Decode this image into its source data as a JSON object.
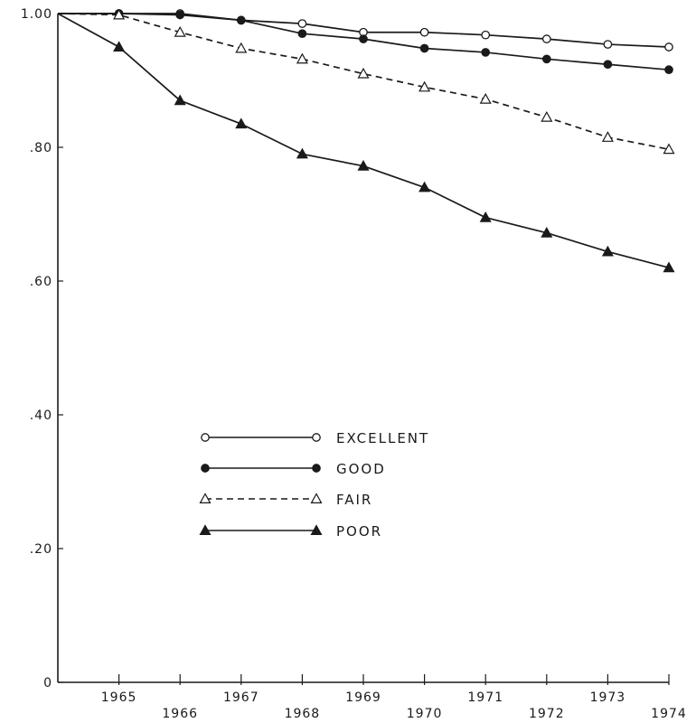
{
  "chart_data": {
    "type": "line",
    "title": "",
    "xlabel": "",
    "ylabel": "",
    "xlim": [
      1964,
      1974
    ],
    "ylim": [
      0,
      1.0
    ],
    "grid": false,
    "legend_position": "center-left",
    "x": [
      1964,
      1965,
      1966,
      1967,
      1968,
      1969,
      1970,
      1971,
      1972,
      1973,
      1974
    ],
    "xtick_labels": [
      "1965",
      "1966",
      "1967",
      "1968",
      "1969",
      "1970",
      "1971",
      "1972",
      "1973",
      "1974"
    ],
    "ytick_labels": [
      {
        "value": 0,
        "label": "0"
      },
      {
        "value": 0.2,
        "label": ".20"
      },
      {
        "value": 0.4,
        "label": ".40"
      },
      {
        "value": 0.6,
        "label": ".60"
      },
      {
        "value": 0.8,
        "label": ".80"
      },
      {
        "value": 1.0,
        "label": "1.00"
      }
    ],
    "series": [
      {
        "name": "EXCELLENT",
        "marker": "open-circle",
        "line": "solid",
        "values": [
          1.0,
          1.0,
          1.0,
          0.99,
          0.985,
          0.972,
          0.972,
          0.968,
          0.962,
          0.954,
          0.95
        ]
      },
      {
        "name": "GOOD",
        "marker": "filled-circle",
        "line": "solid",
        "values": [
          1.0,
          1.0,
          0.998,
          0.99,
          0.97,
          0.962,
          0.948,
          0.942,
          0.932,
          0.924,
          0.916
        ]
      },
      {
        "name": "FAIR",
        "marker": "open-triangle",
        "line": "dashed",
        "values": [
          1.0,
          0.998,
          0.972,
          0.948,
          0.932,
          0.91,
          0.89,
          0.872,
          0.845,
          0.815,
          0.797
        ]
      },
      {
        "name": "POOR",
        "marker": "filled-triangle",
        "line": "solid",
        "values": [
          1.0,
          0.95,
          0.87,
          0.835,
          0.79,
          0.772,
          0.74,
          0.695,
          0.672,
          0.644,
          0.62
        ]
      }
    ]
  }
}
